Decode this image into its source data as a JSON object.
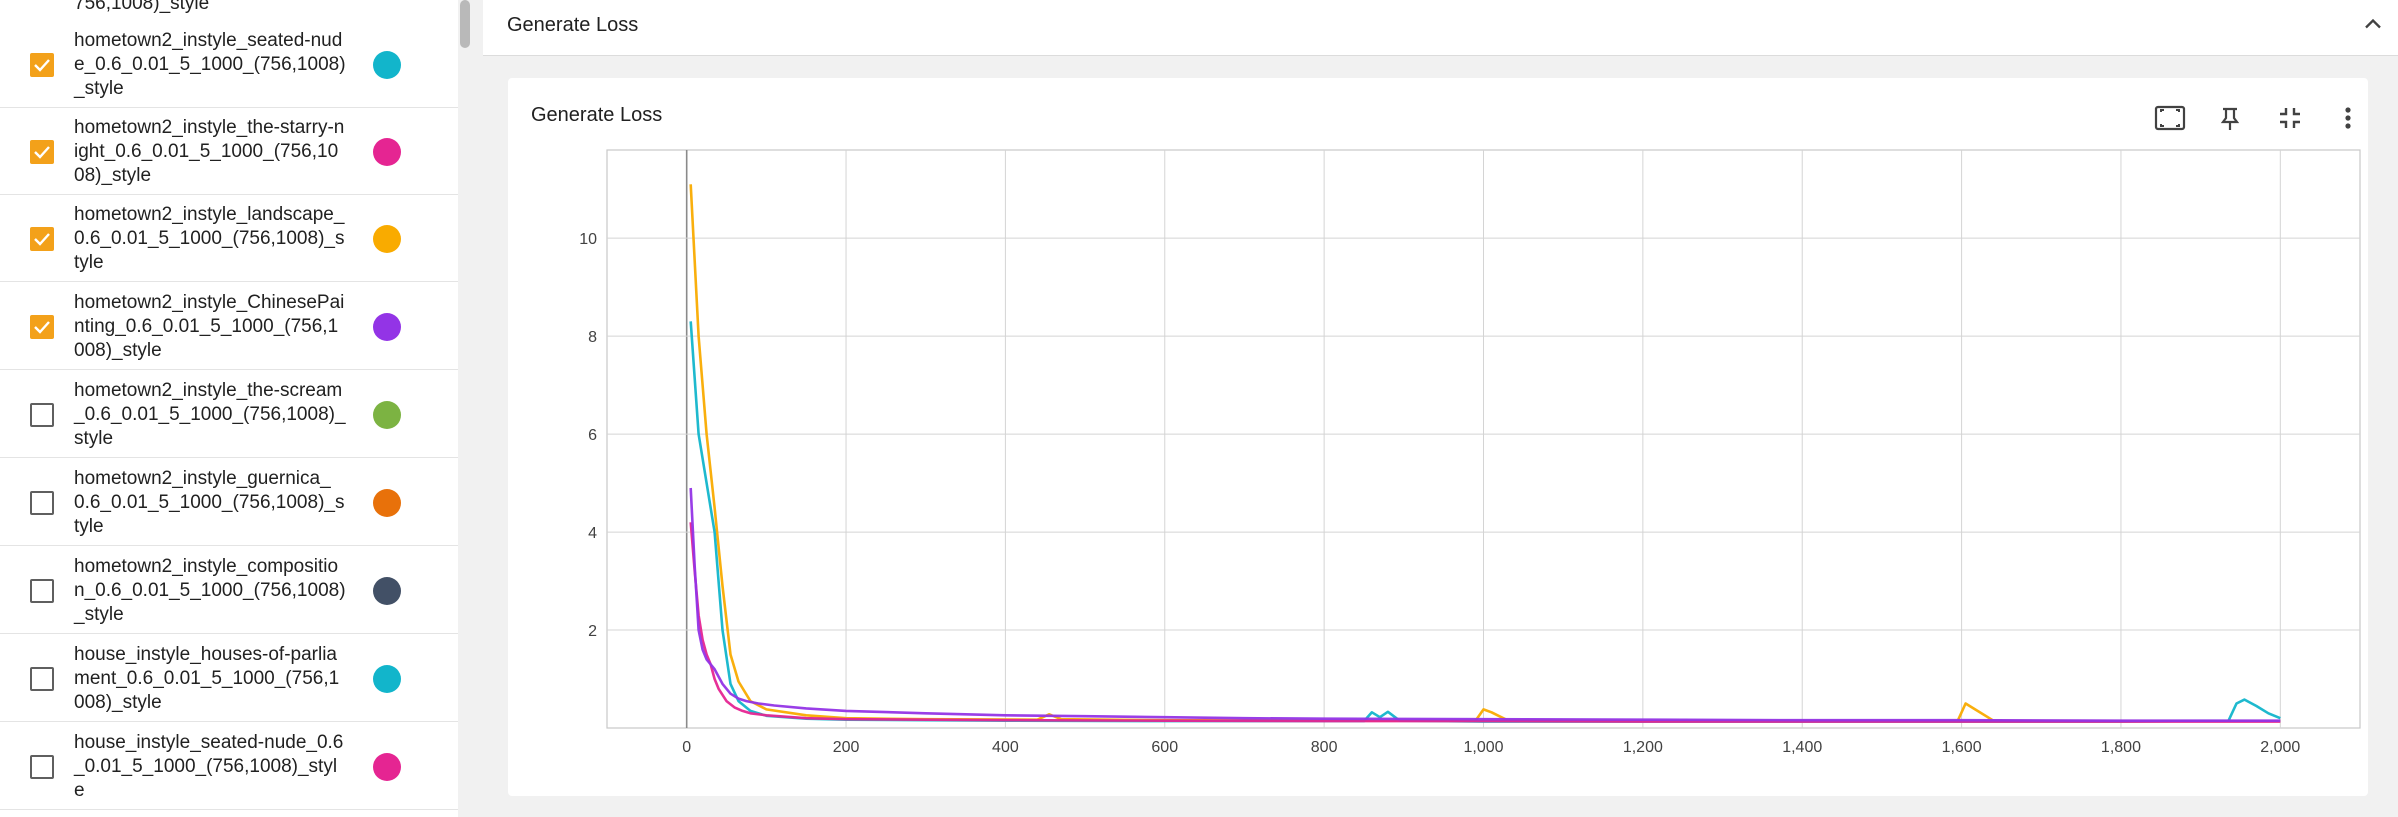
{
  "sidebar": {
    "top_fragment": "756,1008)_style",
    "runs": [
      {
        "label": "hometown2_instyle_seated-nude_0.6_0.01_5_1000_(756,1008)_style",
        "checked": true,
        "color": "#12b5cb"
      },
      {
        "label": "hometown2_instyle_the-starry-night_0.6_0.01_5_1000_(756,1008)_style",
        "checked": true,
        "color": "#e52592"
      },
      {
        "label": "hometown2_instyle_landscape_0.6_0.01_5_1000_(756,1008)_style",
        "checked": true,
        "color": "#f9ab00"
      },
      {
        "label": "hometown2_instyle_ChinesePainting_0.6_0.01_5_1000_(756,1008)_style",
        "checked": true,
        "color": "#9334e6"
      },
      {
        "label": "hometown2_instyle_the-scream_0.6_0.01_5_1000_(756,1008)_style",
        "checked": false,
        "color": "#7cb342"
      },
      {
        "label": "hometown2_instyle_guernica_0.6_0.01_5_1000_(756,1008)_style",
        "checked": false,
        "color": "#e8710a"
      },
      {
        "label": "hometown2_instyle_composition_0.6_0.01_5_1000_(756,1008)_style",
        "checked": false,
        "color": "#425066"
      },
      {
        "label": "house_instyle_houses-of-parliament_0.6_0.01_5_1000_(756,1008)_style",
        "checked": false,
        "color": "#12b5cb"
      },
      {
        "label": "house_instyle_seated-nude_0.6_0.01_5_1000_(756,1008)_style",
        "checked": false,
        "color": "#e52592"
      }
    ]
  },
  "section": {
    "title": "Generate Loss",
    "collapse_icon": "chevron-up-icon"
  },
  "card": {
    "title": "Generate Loss",
    "toolbar": [
      {
        "name": "fit-domain-icon"
      },
      {
        "name": "pin-icon"
      },
      {
        "name": "collapse-card-icon"
      },
      {
        "name": "more-vert-icon"
      }
    ]
  },
  "chart_data": {
    "type": "line",
    "title": "",
    "xlabel": "",
    "ylabel": "",
    "xlim": [
      -100,
      2100
    ],
    "ylim": [
      0,
      11.8
    ],
    "x_ticks": [
      0,
      200,
      400,
      600,
      800,
      1000,
      1200,
      1400,
      1600,
      1800,
      2000
    ],
    "x_tick_labels": [
      "0",
      "200",
      "400",
      "600",
      "800",
      "1,000",
      "1,200",
      "1,400",
      "1,600",
      "1,800",
      "2,000"
    ],
    "y_ticks": [
      2,
      4,
      6,
      8,
      10
    ],
    "y_tick_labels": [
      "2",
      "4",
      "6",
      "8",
      "10"
    ],
    "grid": true,
    "series": [
      {
        "color": "#f9ab00",
        "x": [
          5,
          15,
          25,
          35,
          45,
          55,
          65,
          80,
          100,
          150,
          200,
          300,
          440,
          455,
          470,
          600,
          800,
          990,
          1000,
          1010,
          1030,
          1200,
          1400,
          1595,
          1605,
          1615,
          1640,
          1800,
          2000
        ],
        "y": [
          11.1,
          8.0,
          6.0,
          4.5,
          2.9,
          1.5,
          0.95,
          0.55,
          0.38,
          0.26,
          0.2,
          0.18,
          0.17,
          0.28,
          0.18,
          0.16,
          0.15,
          0.15,
          0.38,
          0.32,
          0.16,
          0.14,
          0.14,
          0.14,
          0.5,
          0.4,
          0.15,
          0.14,
          0.14
        ]
      },
      {
        "color": "#12b5cb",
        "x": [
          5,
          15,
          25,
          35,
          45,
          55,
          65,
          80,
          100,
          150,
          200,
          400,
          600,
          850,
          860,
          870,
          880,
          895,
          1000,
          1200,
          1400,
          1600,
          1800,
          1935,
          1945,
          1955,
          1970,
          1985,
          2000
        ],
        "y": [
          8.3,
          6.0,
          5.0,
          4.0,
          2.0,
          0.9,
          0.55,
          0.35,
          0.25,
          0.19,
          0.17,
          0.15,
          0.14,
          0.14,
          0.32,
          0.22,
          0.33,
          0.15,
          0.13,
          0.13,
          0.13,
          0.13,
          0.13,
          0.15,
          0.5,
          0.58,
          0.45,
          0.3,
          0.2
        ]
      },
      {
        "color": "#e52592",
        "x": [
          5,
          10,
          15,
          20,
          25,
          30,
          35,
          40,
          50,
          60,
          70,
          80,
          100,
          150,
          200,
          400,
          600,
          800,
          1000,
          1200,
          1400,
          1600,
          1800,
          2000
        ],
        "y": [
          4.2,
          3.2,
          2.3,
          1.8,
          1.5,
          1.3,
          1.0,
          0.8,
          0.55,
          0.42,
          0.35,
          0.3,
          0.26,
          0.2,
          0.18,
          0.16,
          0.15,
          0.14,
          0.14,
          0.13,
          0.13,
          0.13,
          0.13,
          0.13
        ]
      },
      {
        "color": "#9334e6",
        "x": [
          5,
          10,
          15,
          20,
          25,
          30,
          35,
          45,
          55,
          65,
          75,
          90,
          110,
          150,
          200,
          300,
          400,
          500,
          600,
          700,
          800,
          1000,
          1200,
          1400,
          1600,
          1800,
          2000
        ],
        "y": [
          4.9,
          3.3,
          2.0,
          1.6,
          1.4,
          1.3,
          1.2,
          0.9,
          0.7,
          0.6,
          0.55,
          0.5,
          0.46,
          0.4,
          0.35,
          0.3,
          0.26,
          0.24,
          0.22,
          0.2,
          0.19,
          0.18,
          0.17,
          0.16,
          0.16,
          0.15,
          0.15
        ]
      }
    ]
  }
}
